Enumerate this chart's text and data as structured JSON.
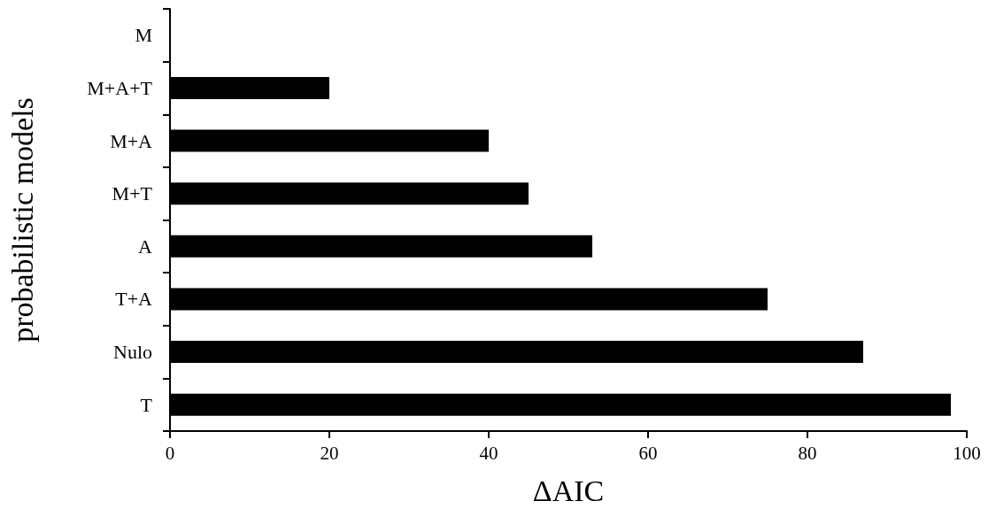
{
  "chart_data": {
    "type": "bar",
    "orientation": "horizontal",
    "xlabel": "ΔAIC",
    "ylabel": "probabilistic models",
    "categories": [
      "M",
      "M+A+T",
      "M+A",
      "M+T",
      "A",
      "T+A",
      "Nulo",
      "T"
    ],
    "values": [
      0,
      20,
      40,
      45,
      53,
      75,
      87,
      98
    ],
    "color": "#000000",
    "xlim": [
      0,
      100
    ],
    "xticks": [
      0,
      20,
      40,
      60,
      80,
      100
    ],
    "grid": false
  }
}
